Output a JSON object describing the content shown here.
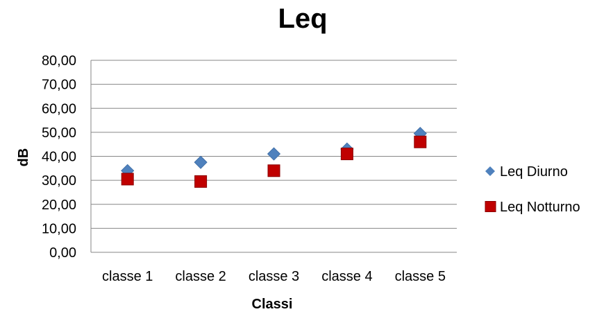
{
  "chart_data": {
    "type": "scatter",
    "title": "Leq",
    "xlabel": "Classi",
    "ylabel": "dB",
    "categories": [
      "classe 1",
      "classe 2",
      "classe 3",
      "classe 4",
      "classe 5"
    ],
    "ylim": [
      0,
      80
    ],
    "yticks": [
      "0,00",
      "10,00",
      "20,00",
      "30,00",
      "40,00",
      "50,00",
      "60,00",
      "70,00",
      "80,00"
    ],
    "grid": true,
    "legend_position": "right",
    "series": [
      {
        "name": "Leq Diurno",
        "marker": "diamond",
        "color": "#4f81bd",
        "values": [
          34.0,
          37.5,
          41.0,
          43.0,
          49.5
        ]
      },
      {
        "name": "Leq Notturno",
        "marker": "square",
        "color": "#c00000",
        "values": [
          30.5,
          29.5,
          34.0,
          41.0,
          46.0
        ]
      }
    ]
  }
}
